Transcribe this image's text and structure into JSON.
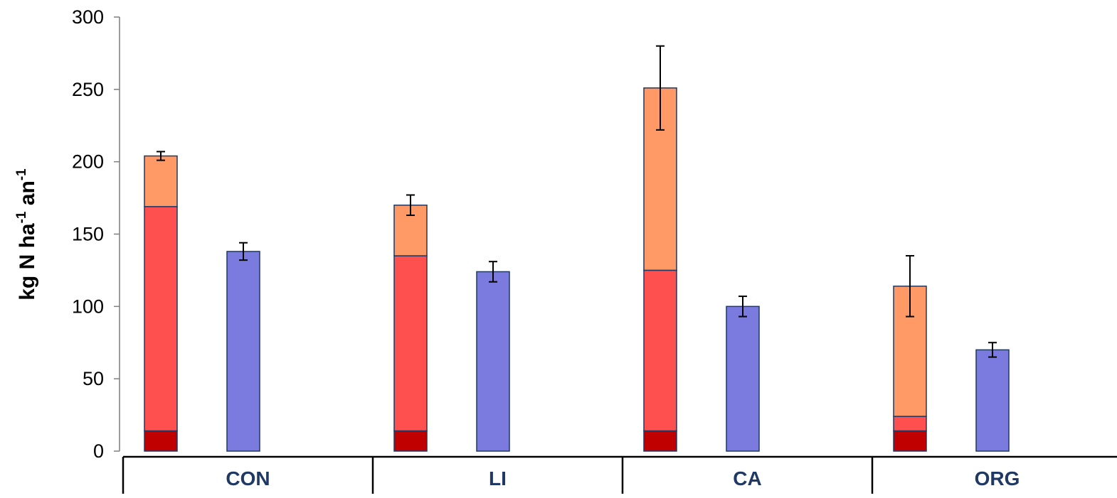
{
  "chart_data": {
    "type": "bar",
    "stacked": true,
    "title": "",
    "xlabel": "",
    "ylabel": {
      "base": "kg N ha",
      "exp1": "-1",
      "mid": " an",
      "exp2": "-1"
    },
    "ylim": [
      0,
      300
    ],
    "yticks": [
      0,
      50,
      100,
      150,
      200,
      250,
      300
    ],
    "grid": false,
    "legend": "none",
    "categories": [
      "CON",
      "LI",
      "CA",
      "ORG"
    ],
    "colors": {
      "dark_red": "#c00000",
      "red": "#ff5050",
      "orange": "#ff9966",
      "blue": "#7b7bdf",
      "outline": "#1f3864",
      "axis": "#000000",
      "category_text": "#1f3864"
    },
    "groups": [
      {
        "category": "CON",
        "stacked_bar": {
          "segments": [
            14,
            155,
            35
          ],
          "total": 204,
          "error": 3
        },
        "blue_bar": {
          "value": 138,
          "error": 6
        }
      },
      {
        "category": "LI",
        "stacked_bar": {
          "segments": [
            14,
            121,
            35
          ],
          "total": 170,
          "error": 7
        },
        "blue_bar": {
          "value": 124,
          "error": 7
        }
      },
      {
        "category": "CA",
        "stacked_bar": {
          "segments": [
            14,
            111,
            126
          ],
          "total": 251,
          "error": 29
        },
        "blue_bar": {
          "value": 100,
          "error": 7
        }
      },
      {
        "category": "ORG",
        "stacked_bar": {
          "segments": [
            14,
            10,
            90
          ],
          "total": 114,
          "error": 21
        },
        "blue_bar": {
          "value": 70,
          "error": 5
        }
      }
    ]
  }
}
